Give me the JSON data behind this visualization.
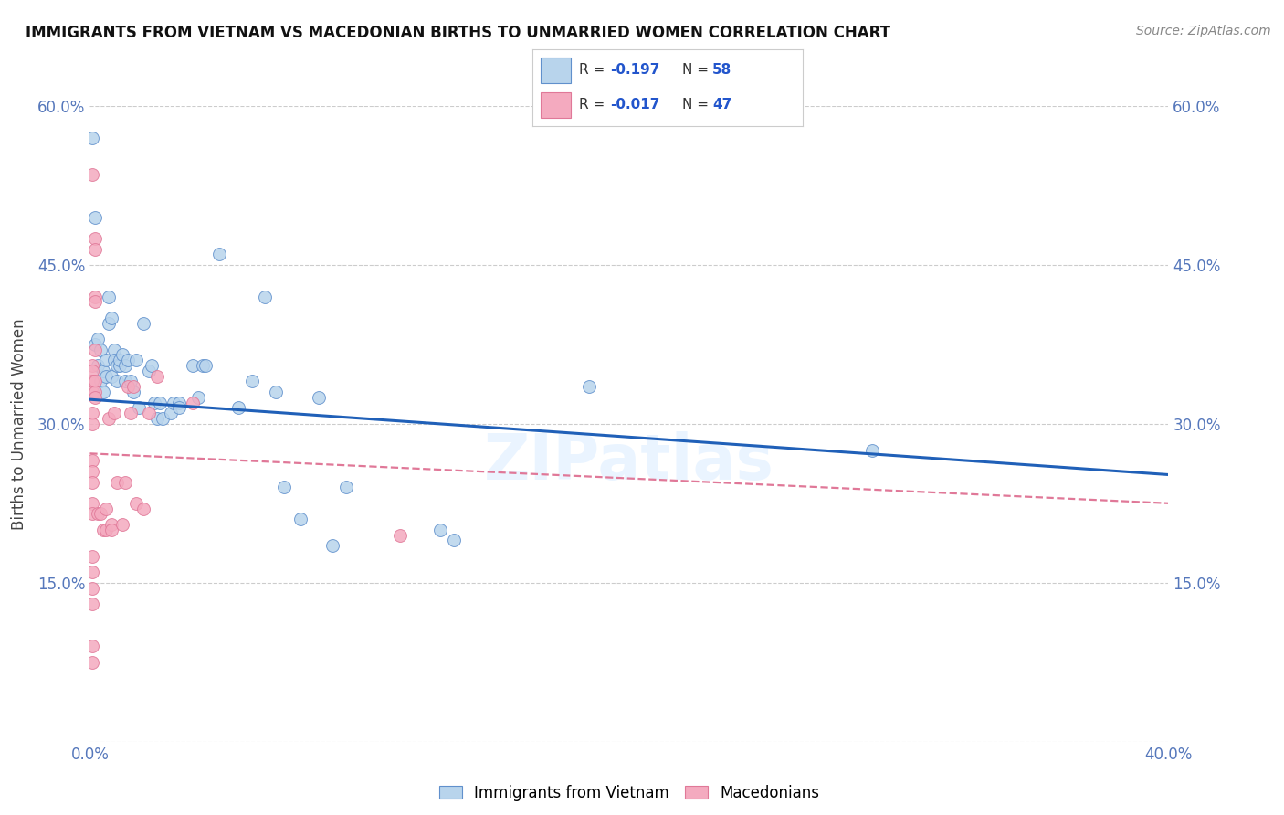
{
  "title": "IMMIGRANTS FROM VIETNAM VS MACEDONIAN BIRTHS TO UNMARRIED WOMEN CORRELATION CHART",
  "source": "Source: ZipAtlas.com",
  "ylabel": "Births to Unmarried Women",
  "legend_label1": "Immigrants from Vietnam",
  "legend_label2": "Macedonians",
  "r1": "-0.197",
  "n1": "58",
  "r2": "-0.017",
  "n2": "47",
  "xlim": [
    0.0,
    0.4
  ],
  "ylim": [
    0.0,
    0.6
  ],
  "xticks": [
    0.0,
    0.05,
    0.1,
    0.15,
    0.2,
    0.25,
    0.3,
    0.35,
    0.4
  ],
  "yticks": [
    0.0,
    0.15,
    0.3,
    0.45,
    0.6
  ],
  "color_blue_fill": "#b8d4ec",
  "color_blue_edge": "#6090cc",
  "color_blue_line": "#2060b8",
  "color_pink_fill": "#f4aabf",
  "color_pink_edge": "#e07898",
  "color_pink_line": "#e07898",
  "watermark_text": "ZIPatlas",
  "blue_trend_x": [
    0.0,
    0.4
  ],
  "blue_trend_y": [
    0.323,
    0.252
  ],
  "pink_trend_x": [
    0.0,
    0.4
  ],
  "pink_trend_y": [
    0.272,
    0.225
  ],
  "blue_scatter": [
    [
      0.001,
      0.57
    ],
    [
      0.002,
      0.495
    ],
    [
      0.002,
      0.375
    ],
    [
      0.003,
      0.38
    ],
    [
      0.003,
      0.355
    ],
    [
      0.004,
      0.37
    ],
    [
      0.004,
      0.34
    ],
    [
      0.005,
      0.35
    ],
    [
      0.005,
      0.33
    ],
    [
      0.006,
      0.36
    ],
    [
      0.006,
      0.345
    ],
    [
      0.007,
      0.395
    ],
    [
      0.007,
      0.42
    ],
    [
      0.008,
      0.345
    ],
    [
      0.008,
      0.4
    ],
    [
      0.009,
      0.37
    ],
    [
      0.009,
      0.36
    ],
    [
      0.01,
      0.355
    ],
    [
      0.01,
      0.34
    ],
    [
      0.011,
      0.355
    ],
    [
      0.011,
      0.36
    ],
    [
      0.012,
      0.365
    ],
    [
      0.013,
      0.34
    ],
    [
      0.013,
      0.355
    ],
    [
      0.014,
      0.36
    ],
    [
      0.015,
      0.34
    ],
    [
      0.016,
      0.33
    ],
    [
      0.017,
      0.36
    ],
    [
      0.018,
      0.315
    ],
    [
      0.02,
      0.395
    ],
    [
      0.022,
      0.35
    ],
    [
      0.023,
      0.355
    ],
    [
      0.024,
      0.32
    ],
    [
      0.025,
      0.305
    ],
    [
      0.026,
      0.32
    ],
    [
      0.027,
      0.305
    ],
    [
      0.03,
      0.31
    ],
    [
      0.031,
      0.32
    ],
    [
      0.033,
      0.32
    ],
    [
      0.033,
      0.315
    ],
    [
      0.038,
      0.355
    ],
    [
      0.04,
      0.325
    ],
    [
      0.042,
      0.355
    ],
    [
      0.043,
      0.355
    ],
    [
      0.048,
      0.46
    ],
    [
      0.055,
      0.315
    ],
    [
      0.06,
      0.34
    ],
    [
      0.065,
      0.42
    ],
    [
      0.069,
      0.33
    ],
    [
      0.072,
      0.24
    ],
    [
      0.078,
      0.21
    ],
    [
      0.085,
      0.325
    ],
    [
      0.09,
      0.185
    ],
    [
      0.095,
      0.24
    ],
    [
      0.13,
      0.2
    ],
    [
      0.135,
      0.19
    ],
    [
      0.185,
      0.335
    ],
    [
      0.29,
      0.275
    ]
  ],
  "pink_scatter": [
    [
      0.001,
      0.535
    ],
    [
      0.001,
      0.355
    ],
    [
      0.001,
      0.35
    ],
    [
      0.001,
      0.34
    ],
    [
      0.001,
      0.33
    ],
    [
      0.001,
      0.31
    ],
    [
      0.001,
      0.3
    ],
    [
      0.001,
      0.265
    ],
    [
      0.001,
      0.255
    ],
    [
      0.001,
      0.245
    ],
    [
      0.001,
      0.225
    ],
    [
      0.001,
      0.215
    ],
    [
      0.001,
      0.175
    ],
    [
      0.001,
      0.16
    ],
    [
      0.001,
      0.145
    ],
    [
      0.001,
      0.13
    ],
    [
      0.001,
      0.09
    ],
    [
      0.001,
      0.075
    ],
    [
      0.002,
      0.475
    ],
    [
      0.002,
      0.465
    ],
    [
      0.002,
      0.42
    ],
    [
      0.002,
      0.415
    ],
    [
      0.002,
      0.37
    ],
    [
      0.002,
      0.34
    ],
    [
      0.002,
      0.33
    ],
    [
      0.002,
      0.325
    ],
    [
      0.003,
      0.215
    ],
    [
      0.004,
      0.215
    ],
    [
      0.005,
      0.2
    ],
    [
      0.006,
      0.22
    ],
    [
      0.006,
      0.2
    ],
    [
      0.007,
      0.305
    ],
    [
      0.008,
      0.205
    ],
    [
      0.008,
      0.2
    ],
    [
      0.009,
      0.31
    ],
    [
      0.01,
      0.245
    ],
    [
      0.012,
      0.205
    ],
    [
      0.013,
      0.245
    ],
    [
      0.014,
      0.335
    ],
    [
      0.015,
      0.31
    ],
    [
      0.016,
      0.335
    ],
    [
      0.017,
      0.225
    ],
    [
      0.02,
      0.22
    ],
    [
      0.022,
      0.31
    ],
    [
      0.025,
      0.345
    ],
    [
      0.038,
      0.32
    ],
    [
      0.115,
      0.195
    ]
  ]
}
